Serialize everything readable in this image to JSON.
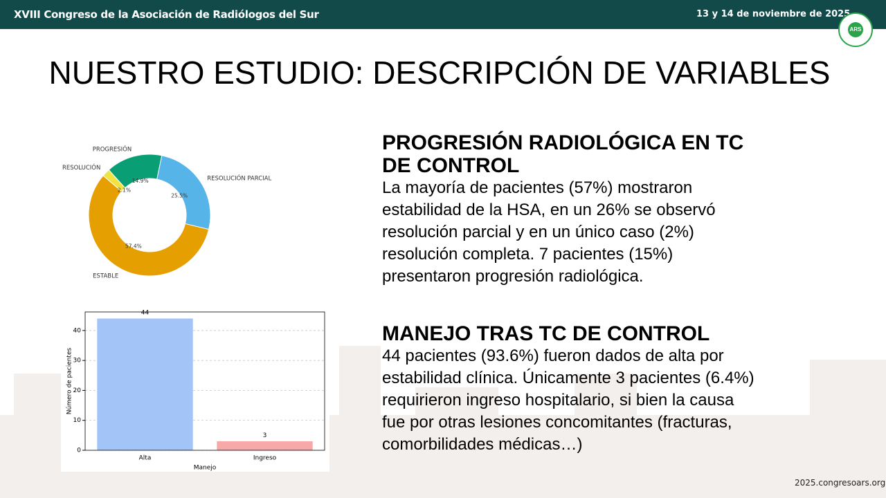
{
  "header": {
    "conference": "XVIII Congreso de la Asociación de Radiólogos del Sur",
    "date": "13 y 14 de noviembre de 2025",
    "logo": "ARS"
  },
  "title": "NUESTRO ESTUDIO: DESCRIPCIÓN DE VARIABLES",
  "sections": [
    {
      "heading": [
        "PROGRESIÓN RADIOLÓGICA EN TC",
        "DE CONTROL"
      ],
      "body": [
        "La mayoría de pacientes (57%) mostraron",
        "estabilidad de la HSA, en un 26% se observó",
        "resolución parcial y en un único caso (2%)",
        "resolución completa. 7 pacientes (15%)",
        "presentaron progresión radiológica."
      ]
    },
    {
      "heading": [
        "MANEJO TRAS TC DE CONTROL"
      ],
      "body": [
        "44 pacientes (93.6%) fueron dados de alta por",
        "estabilidad clínica. Únicamente 3 pacientes (6.4%)",
        "requirieron ingreso hospitalario, si bien la causa",
        "fue por otras lesiones concomitantes (fracturas,",
        "comorbilidades médicas…)"
      ]
    }
  ],
  "chart_data": [
    {
      "type": "pie",
      "donut": true,
      "categories": [
        "PROGRESIÓN",
        "RESOLUCIÓN PARCIAL",
        "ESTABLE",
        "RESOLUCIÓN"
      ],
      "values": [
        14.9,
        25.5,
        57.4,
        2.1
      ],
      "value_labels": [
        "14.9%",
        "25.5%",
        "57.4%",
        "2.1%"
      ],
      "colors": [
        "#0a9e74",
        "#56b4e9",
        "#e69f00",
        "#f0e442"
      ]
    },
    {
      "type": "bar",
      "categories": [
        "Alta",
        "Ingreso"
      ],
      "values": [
        44,
        3
      ],
      "colors": [
        "#a3c4f7",
        "#f7a8a8"
      ],
      "xlabel": "Manejo",
      "ylabel": "Número de pacientes",
      "ylim": [
        0,
        46.2
      ],
      "yticks": [
        0,
        10,
        20,
        30,
        40
      ],
      "grid": true
    }
  ],
  "footer": "2025.congresoars.org"
}
